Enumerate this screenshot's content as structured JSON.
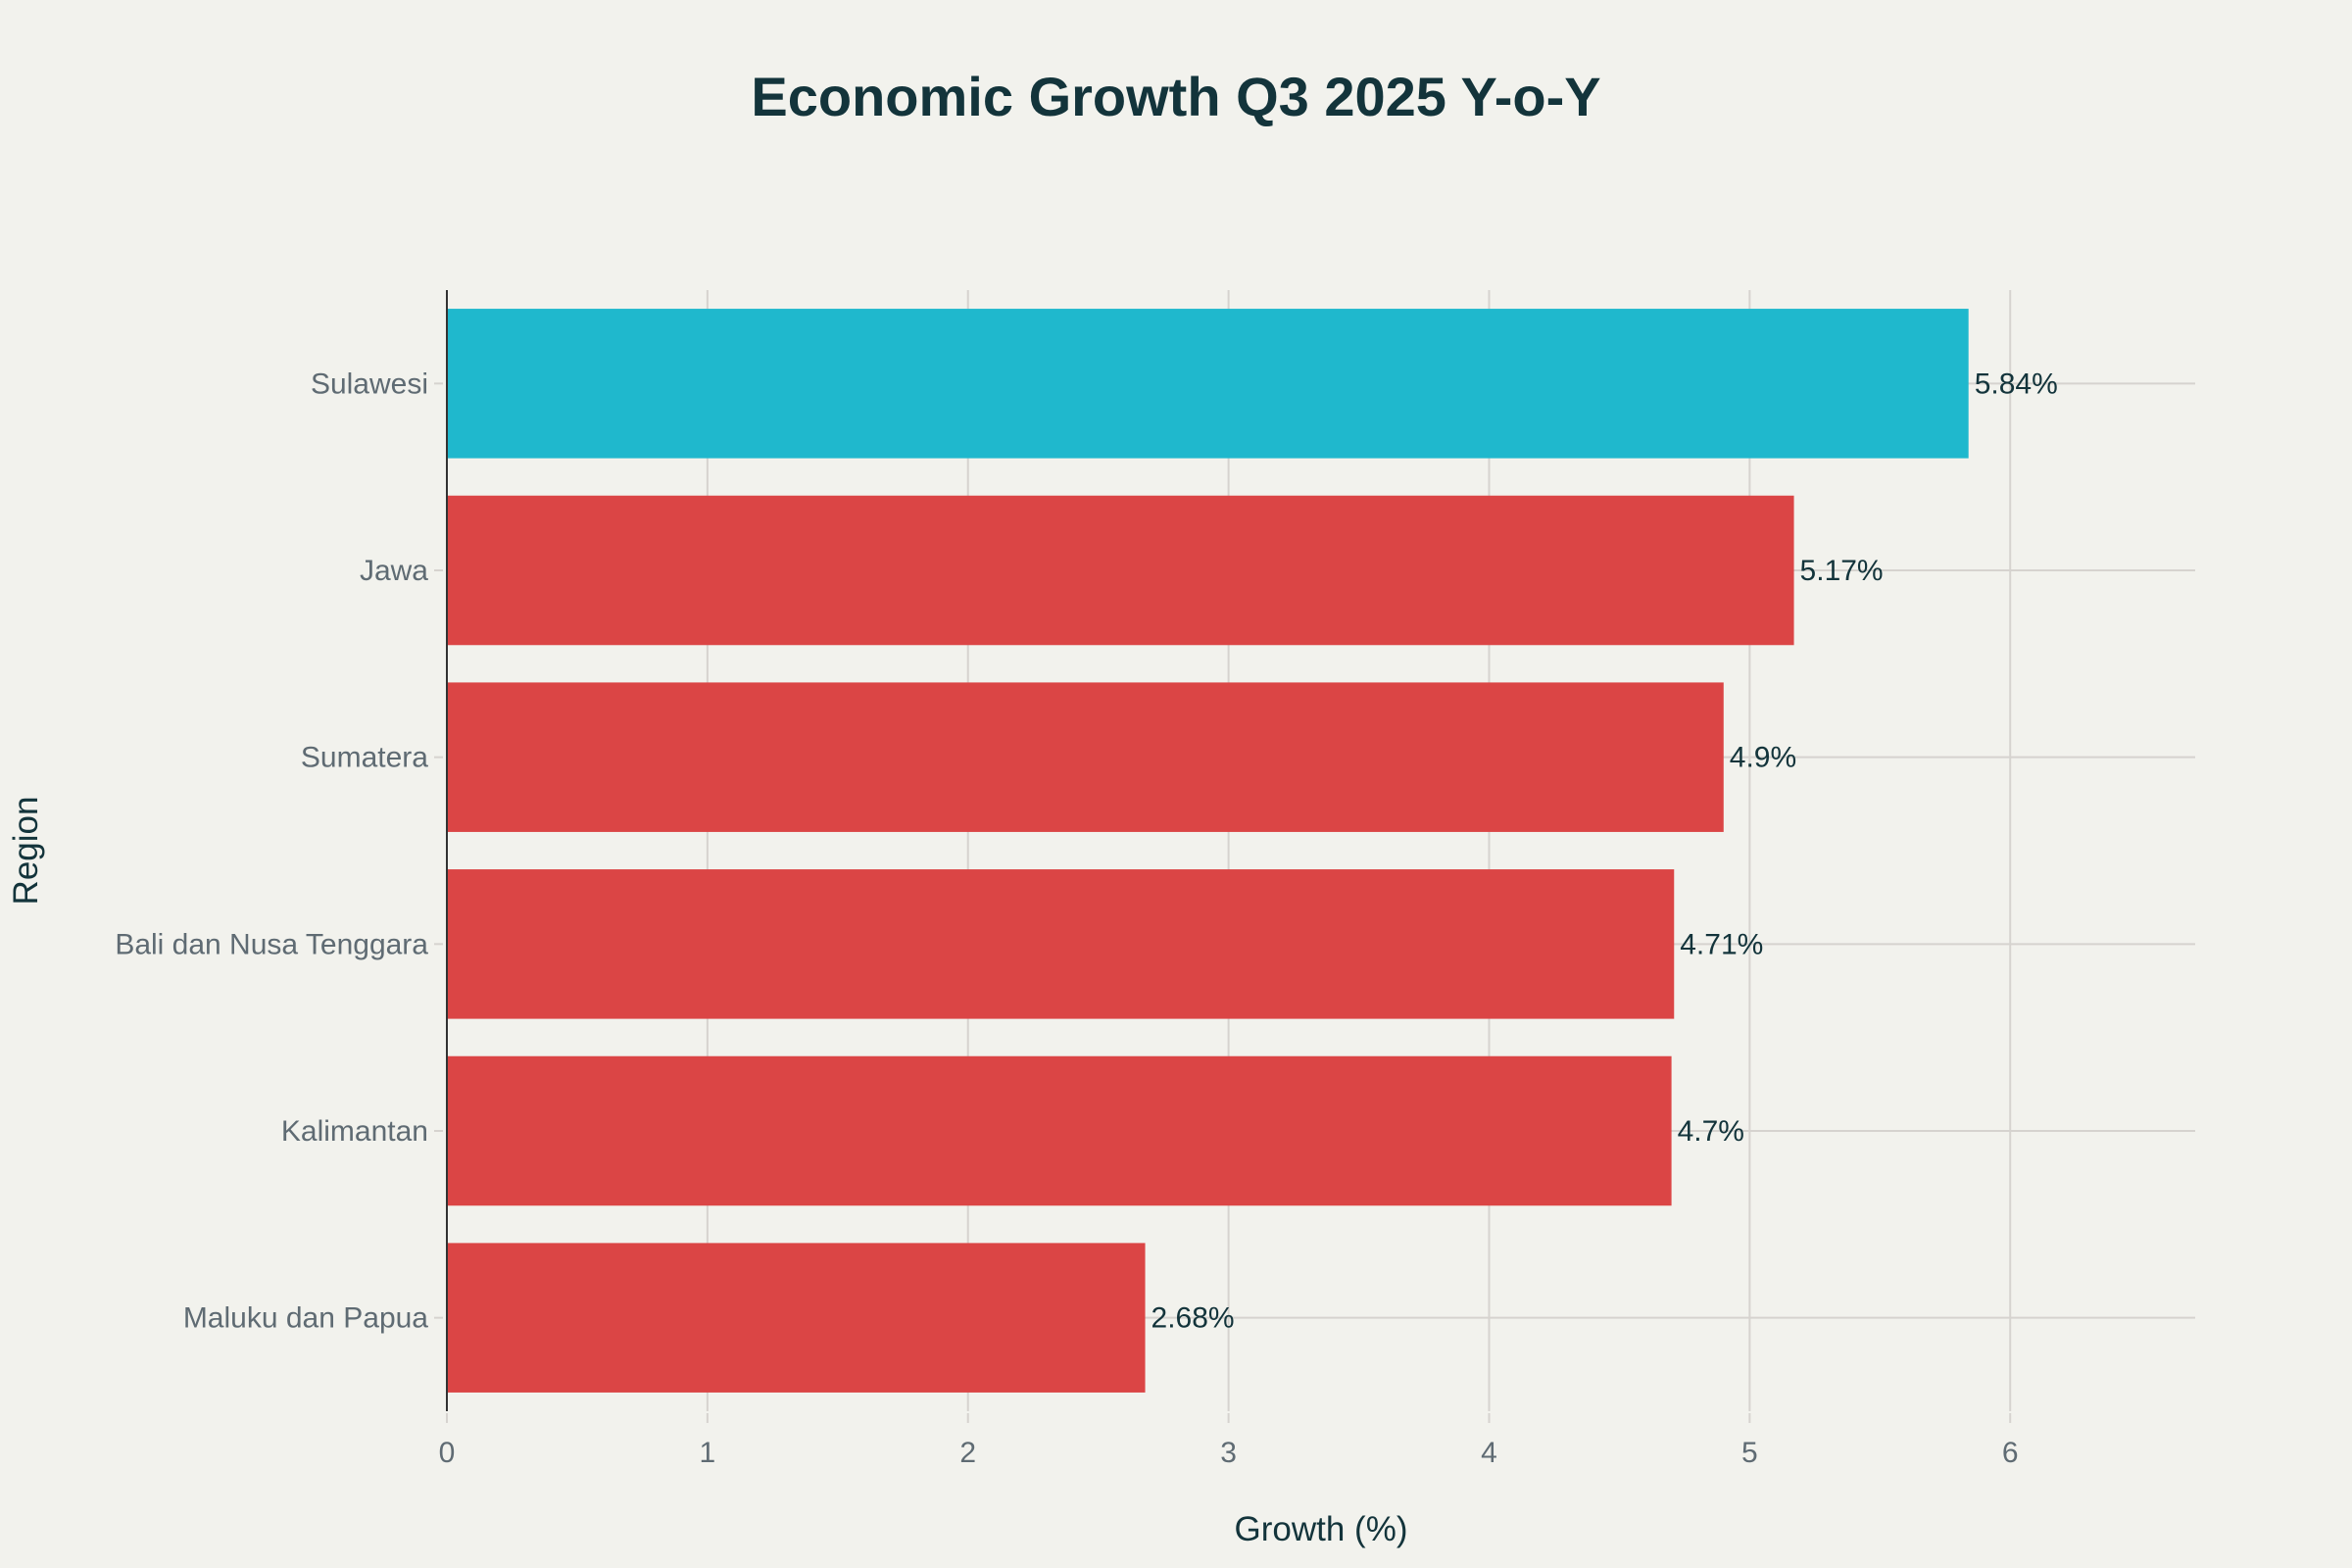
{
  "chart_data": {
    "type": "bar",
    "orientation": "horizontal",
    "title": "Economic Growth Q3 2025 Y-o-Y",
    "xlabel": "Growth (%)",
    "ylabel": "Region",
    "categories": [
      "Sulawesi",
      "Jawa",
      "Sumatera",
      "Bali dan Nusa Tenggara",
      "Kalimantan",
      "Maluku dan Papua"
    ],
    "values": [
      5.84,
      5.17,
      4.9,
      4.71,
      4.7,
      2.68
    ],
    "data_labels": [
      "5.84%",
      "5.17%",
      "4.9%",
      "4.71%",
      "4.7%",
      "2.68%"
    ],
    "bar_colors": [
      "#1fb8cd",
      "#db4545",
      "#db4545",
      "#db4545",
      "#db4545",
      "#db4545"
    ],
    "xlim": [
      0,
      6.71
    ],
    "xticks": [
      0,
      1,
      2,
      3,
      4,
      5,
      6
    ],
    "xtick_labels": [
      "0",
      "1",
      "2",
      "3",
      "4",
      "5",
      "6"
    ],
    "grid": true,
    "legend": "none"
  },
  "colors": {
    "background": "#f2f2ed",
    "highlight": "#1fb8cd",
    "default_bar": "#db4545",
    "text_dark": "#13343b",
    "text_muted": "#5f6b73"
  }
}
